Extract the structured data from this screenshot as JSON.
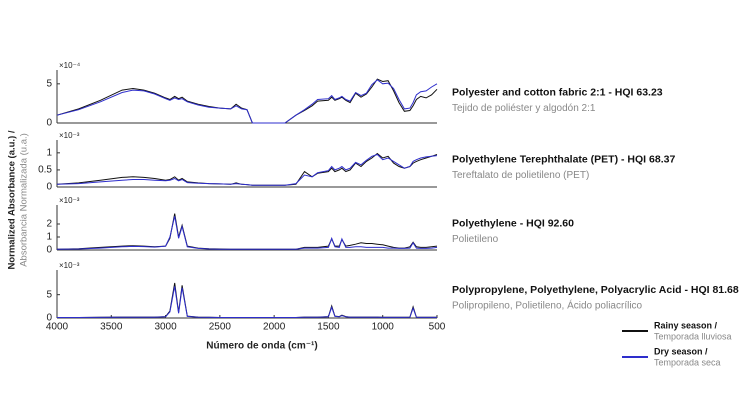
{
  "figure": {
    "ylabel": "Normalized Absorbance (a.u.) /",
    "ylabel_2": "Absorbancia Normalizada (u.a.)",
    "xlabel": "Número de onda (cm⁻¹)",
    "legend": [
      {
        "name": "Rainy season /",
        "subname": "Temporada lluviosa",
        "color": "#111111"
      },
      {
        "name": "Dry season /",
        "subname": "Temporada seca",
        "color": "#2e2ecc"
      }
    ]
  },
  "chart_data": [
    {
      "type": "line",
      "title": "Polyester and cotton fabric 2:1 - HQI 63.23",
      "subtitle": "Tejido de poliéster y algodón 2:1",
      "y_exponent": "×10⁻⁴",
      "ylim": [
        0,
        6
      ],
      "yticks": [
        0,
        5
      ],
      "xlim": [
        4000,
        500
      ],
      "x": [
        4000,
        3800,
        3600,
        3400,
        3300,
        3200,
        3100,
        3000,
        2960,
        2916,
        2880,
        2848,
        2800,
        2700,
        2600,
        2500,
        2400,
        2350,
        2300,
        2250,
        2200,
        2150,
        2100,
        2000,
        1900,
        1800,
        1720,
        1650,
        1600,
        1500,
        1470,
        1440,
        1400,
        1376,
        1340,
        1300,
        1250,
        1200,
        1150,
        1100,
        1050,
        1000,
        950,
        900,
        850,
        800,
        750,
        720,
        690,
        650,
        600,
        550,
        500
      ],
      "series": [
        {
          "color": "#111111",
          "values": [
            1.0,
            1.8,
            2.9,
            4.2,
            4.4,
            4.2,
            3.8,
            3.2,
            3.0,
            3.4,
            3.1,
            3.3,
            2.8,
            2.4,
            2.1,
            1.9,
            1.8,
            2.4,
            1.9,
            1.7,
            0,
            0,
            0,
            0,
            0,
            1.0,
            1.6,
            2.2,
            2.8,
            2.9,
            3.3,
            2.9,
            3.1,
            3.3,
            2.9,
            2.6,
            3.8,
            3.3,
            3.7,
            4.6,
            5.6,
            5.3,
            5.4,
            4.1,
            2.6,
            1.5,
            1.6,
            2.2,
            3.0,
            3.4,
            3.2,
            3.6,
            4.3
          ]
        },
        {
          "color": "#2e2ecc",
          "values": [
            1.0,
            1.7,
            2.7,
            3.9,
            4.2,
            4.1,
            3.7,
            3.1,
            2.9,
            3.2,
            3.0,
            3.1,
            2.7,
            2.3,
            2.0,
            1.9,
            1.8,
            2.2,
            1.8,
            1.7,
            0,
            0,
            0,
            0,
            0,
            1.0,
            1.7,
            2.4,
            3.0,
            3.1,
            3.5,
            3.0,
            3.2,
            3.4,
            3.0,
            2.8,
            3.9,
            3.5,
            3.8,
            4.9,
            5.5,
            5.0,
            5.1,
            4.4,
            3.0,
            1.8,
            1.9,
            2.6,
            3.6,
            4.0,
            4.1,
            4.6,
            5.0
          ]
        }
      ]
    },
    {
      "type": "line",
      "title": "Polyethylene Terephthalate (PET) - HQI 68.37",
      "subtitle": "Tereftalato de polietileno (PET)",
      "y_exponent": "×10⁻³",
      "ylim": [
        0,
        1.2
      ],
      "yticks": [
        0,
        0.5,
        1
      ],
      "xlim": [
        4000,
        500
      ],
      "x": [
        4000,
        3800,
        3600,
        3400,
        3300,
        3200,
        3100,
        3000,
        2960,
        2916,
        2880,
        2848,
        2800,
        2700,
        2600,
        2500,
        2400,
        2350,
        2300,
        2250,
        2200,
        2150,
        2100,
        2000,
        1900,
        1800,
        1720,
        1650,
        1600,
        1500,
        1470,
        1440,
        1400,
        1376,
        1340,
        1300,
        1250,
        1200,
        1150,
        1100,
        1050,
        1000,
        950,
        900,
        850,
        800,
        750,
        720,
        690,
        650,
        600,
        550,
        500
      ],
      "series": [
        {
          "color": "#111111",
          "values": [
            0.08,
            0.12,
            0.2,
            0.28,
            0.3,
            0.28,
            0.25,
            0.2,
            0.22,
            0.3,
            0.2,
            0.25,
            0.15,
            0.12,
            0.1,
            0.09,
            0.08,
            0.12,
            0.08,
            0.07,
            0.05,
            0.05,
            0.05,
            0.05,
            0.05,
            0.08,
            0.45,
            0.3,
            0.4,
            0.45,
            0.55,
            0.45,
            0.5,
            0.55,
            0.45,
            0.5,
            0.7,
            0.6,
            0.75,
            0.85,
            0.98,
            0.85,
            0.9,
            0.7,
            0.6,
            0.55,
            0.6,
            0.7,
            0.75,
            0.8,
            0.85,
            0.9,
            0.95
          ]
        },
        {
          "color": "#2e2ecc",
          "values": [
            0.08,
            0.1,
            0.15,
            0.2,
            0.22,
            0.22,
            0.2,
            0.18,
            0.2,
            0.25,
            0.18,
            0.22,
            0.13,
            0.11,
            0.1,
            0.09,
            0.08,
            0.1,
            0.08,
            0.07,
            0.05,
            0.05,
            0.05,
            0.05,
            0.05,
            0.1,
            0.35,
            0.3,
            0.42,
            0.48,
            0.6,
            0.5,
            0.55,
            0.6,
            0.5,
            0.55,
            0.72,
            0.65,
            0.78,
            0.9,
            0.95,
            0.8,
            0.85,
            0.75,
            0.65,
            0.55,
            0.6,
            0.75,
            0.8,
            0.85,
            0.88,
            0.9,
            0.92
          ]
        }
      ]
    },
    {
      "type": "line",
      "title": "Polyethylene - HQI 92.60",
      "subtitle": "Polietileno",
      "y_exponent": "×10⁻³",
      "ylim": [
        0,
        3
      ],
      "yticks": [
        0,
        1,
        2
      ],
      "xlim": [
        4000,
        500
      ],
      "x": [
        4000,
        3800,
        3600,
        3400,
        3300,
        3200,
        3100,
        3000,
        2960,
        2916,
        2880,
        2848,
        2800,
        2700,
        2600,
        2500,
        2400,
        2350,
        2300,
        2250,
        2200,
        2150,
        2100,
        2000,
        1900,
        1800,
        1720,
        1650,
        1600,
        1500,
        1470,
        1440,
        1400,
        1376,
        1340,
        1300,
        1250,
        1200,
        1150,
        1100,
        1050,
        1000,
        950,
        900,
        850,
        800,
        750,
        720,
        690,
        650,
        600,
        550,
        500
      ],
      "series": [
        {
          "color": "#111111",
          "values": [
            0.05,
            0.1,
            0.2,
            0.3,
            0.33,
            0.3,
            0.25,
            0.3,
            0.9,
            2.8,
            1.0,
            1.9,
            0.3,
            0.15,
            0.1,
            0.08,
            0.05,
            0.05,
            0.05,
            0.05,
            0.05,
            0.05,
            0.05,
            0.05,
            0.05,
            0.05,
            0.2,
            0.2,
            0.2,
            0.3,
            0.85,
            0.3,
            0.3,
            0.8,
            0.3,
            0.35,
            0.45,
            0.55,
            0.5,
            0.5,
            0.45,
            0.4,
            0.3,
            0.2,
            0.15,
            0.15,
            0.25,
            0.6,
            0.25,
            0.2,
            0.2,
            0.25,
            0.3
          ]
        },
        {
          "color": "#2e2ecc",
          "values": [
            0.05,
            0.08,
            0.15,
            0.25,
            0.28,
            0.26,
            0.22,
            0.3,
            1.0,
            2.6,
            0.9,
            1.8,
            0.25,
            0.12,
            0.08,
            0.06,
            0.05,
            0.05,
            0.05,
            0.05,
            0.05,
            0.05,
            0.05,
            0.05,
            0.05,
            0.05,
            0.15,
            0.15,
            0.15,
            0.2,
            0.9,
            0.25,
            0.2,
            0.85,
            0.2,
            0.2,
            0.25,
            0.25,
            0.2,
            0.2,
            0.2,
            0.2,
            0.15,
            0.15,
            0.12,
            0.12,
            0.15,
            0.55,
            0.15,
            0.12,
            0.12,
            0.15,
            0.2
          ]
        }
      ]
    },
    {
      "type": "line",
      "title": "Polypropylene, Polyethylene, Polyacrylic Acid - HQI 81.68",
      "subtitle": "Polipropileno, Polietileno, Ácido poliacrílico",
      "y_exponent": "×10⁻³",
      "ylim": [
        0,
        9
      ],
      "yticks": [
        0,
        5
      ],
      "xlim": [
        4000,
        500
      ],
      "xticks": [
        4000,
        3500,
        3000,
        2500,
        2000,
        1500,
        1000,
        500
      ],
      "x": [
        4000,
        3800,
        3600,
        3400,
        3300,
        3200,
        3100,
        3000,
        2960,
        2916,
        2880,
        2848,
        2800,
        2700,
        2600,
        2500,
        2400,
        2350,
        2300,
        2250,
        2200,
        2150,
        2100,
        2000,
        1900,
        1800,
        1720,
        1650,
        1600,
        1500,
        1470,
        1440,
        1400,
        1376,
        1340,
        1300,
        1250,
        1200,
        1150,
        1100,
        1050,
        1000,
        950,
        900,
        850,
        800,
        750,
        720,
        690,
        650,
        600,
        550,
        500
      ],
      "series": [
        {
          "color": "#111111",
          "values": [
            0.1,
            0.1,
            0.15,
            0.2,
            0.2,
            0.2,
            0.2,
            0.3,
            1.5,
            7.5,
            1.2,
            7.0,
            0.4,
            0.2,
            0.15,
            0.1,
            0.1,
            0.1,
            0.1,
            0.1,
            0.1,
            0.1,
            0.1,
            0.1,
            0.1,
            0.1,
            0.2,
            0.2,
            0.2,
            0.3,
            2.6,
            0.4,
            0.3,
            0.6,
            0.3,
            0.2,
            0.2,
            0.2,
            0.2,
            0.2,
            0.2,
            0.15,
            0.15,
            0.15,
            0.15,
            0.15,
            0.2,
            2.4,
            0.2,
            0.15,
            0.15,
            0.15,
            0.15
          ]
        },
        {
          "color": "#2e2ecc",
          "values": [
            0.1,
            0.1,
            0.12,
            0.15,
            0.15,
            0.15,
            0.15,
            0.25,
            1.3,
            6.8,
            1.0,
            6.5,
            0.35,
            0.15,
            0.12,
            0.1,
            0.1,
            0.1,
            0.1,
            0.1,
            0.1,
            0.1,
            0.1,
            0.1,
            0.1,
            0.1,
            0.15,
            0.15,
            0.15,
            0.25,
            2.3,
            0.35,
            0.25,
            0.5,
            0.25,
            0.15,
            0.15,
            0.15,
            0.15,
            0.15,
            0.15,
            0.12,
            0.12,
            0.12,
            0.12,
            0.12,
            0.15,
            2.1,
            0.15,
            0.12,
            0.12,
            0.12,
            0.12
          ]
        }
      ]
    }
  ]
}
